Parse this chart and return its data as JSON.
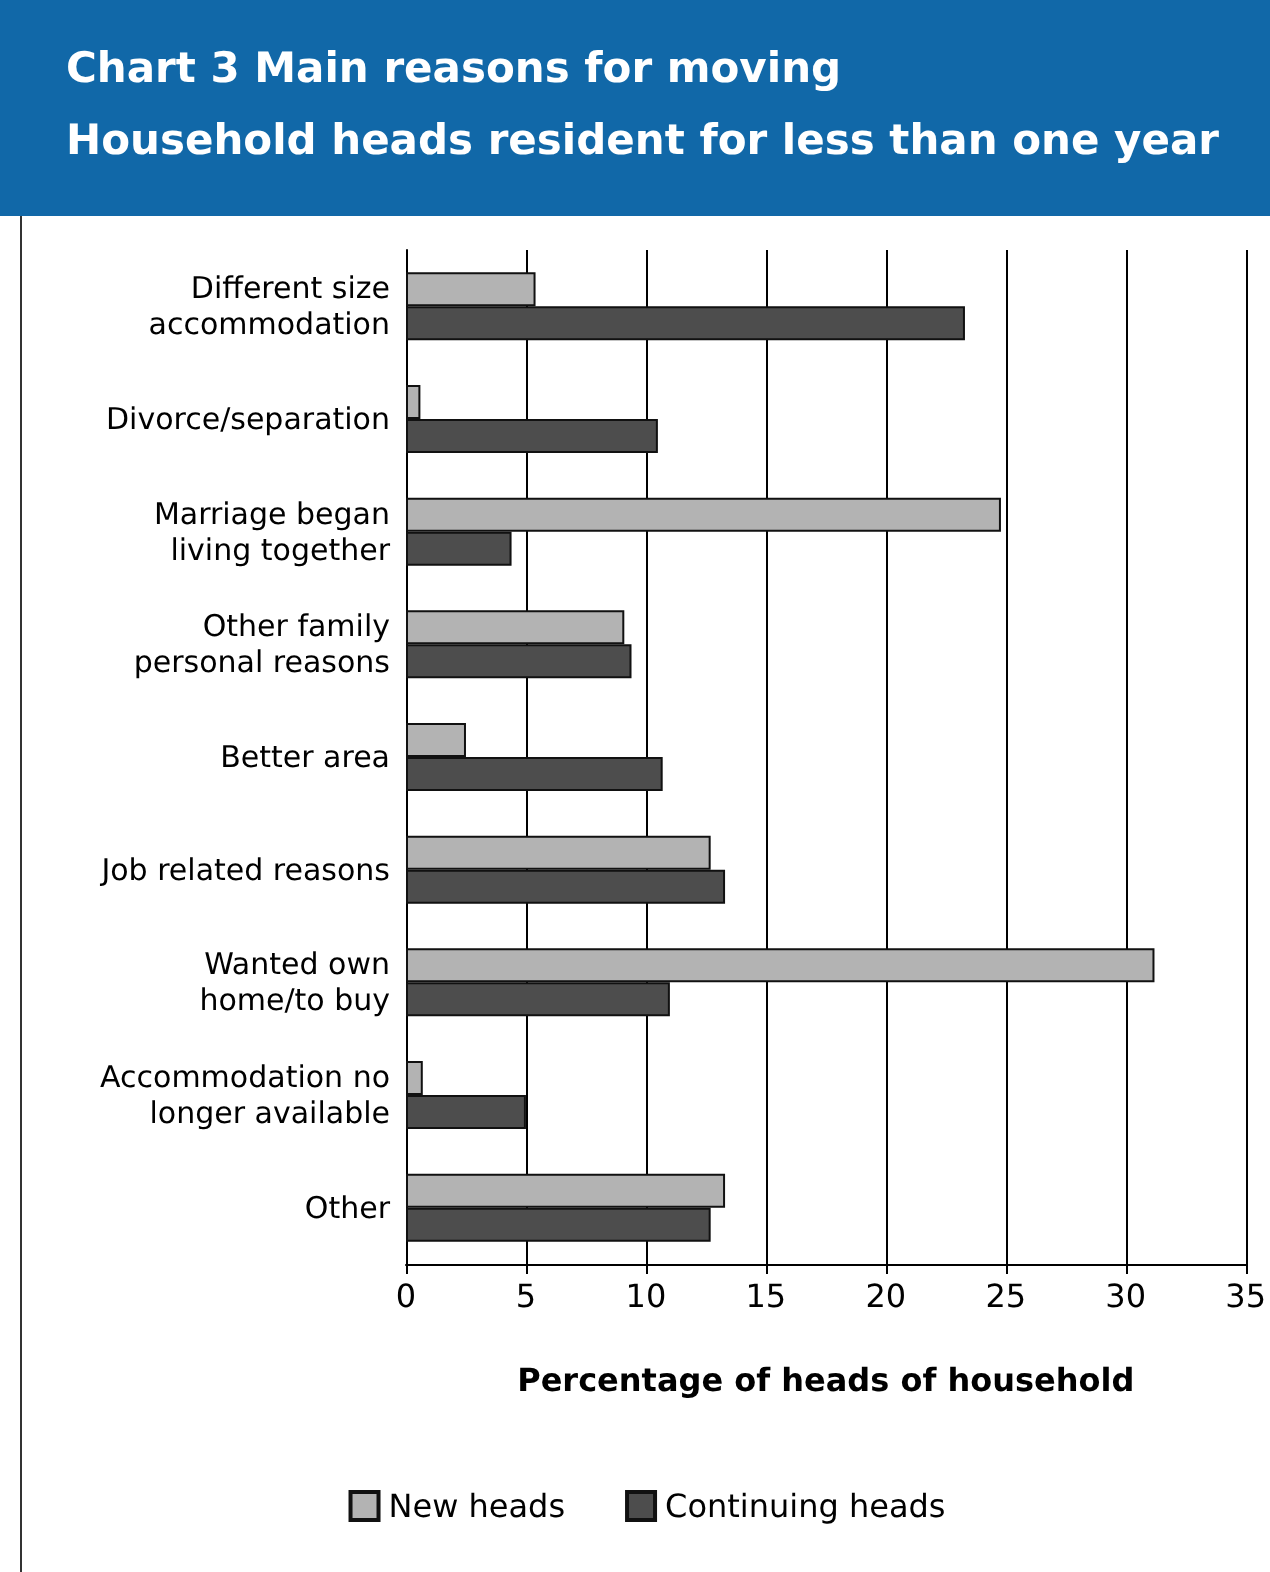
{
  "chart_data": {
    "type": "bar",
    "orientation": "horizontal",
    "title": "Chart 3 Main reasons for moving",
    "subtitle": "Household heads resident for less than one year",
    "xlabel": "Percentage of heads of household",
    "categories": [
      "Different size\naccommodation",
      "Divorce/separation",
      "Marriage began\nliving together",
      "Other family\npersonal reasons",
      "Better area",
      "Job related reasons",
      "Wanted own\nhome/to buy",
      "Accommodation no\nlonger available",
      "Other"
    ],
    "series": [
      {
        "name": "New heads",
        "color": "#b3b3b3",
        "values": [
          5.4,
          0.6,
          24.8,
          9.1,
          2.5,
          12.7,
          31.2,
          0.7,
          13.3
        ]
      },
      {
        "name": "Continuing heads",
        "color": "#4d4d4d",
        "values": [
          23.3,
          10.5,
          4.4,
          9.4,
          10.7,
          13.3,
          11.0,
          5.0,
          12.7
        ]
      }
    ],
    "xlim": [
      0,
      35
    ],
    "xticks": [
      0,
      5,
      10,
      15,
      20,
      25,
      30,
      35
    ],
    "grid": "x",
    "legend": "bottom"
  }
}
